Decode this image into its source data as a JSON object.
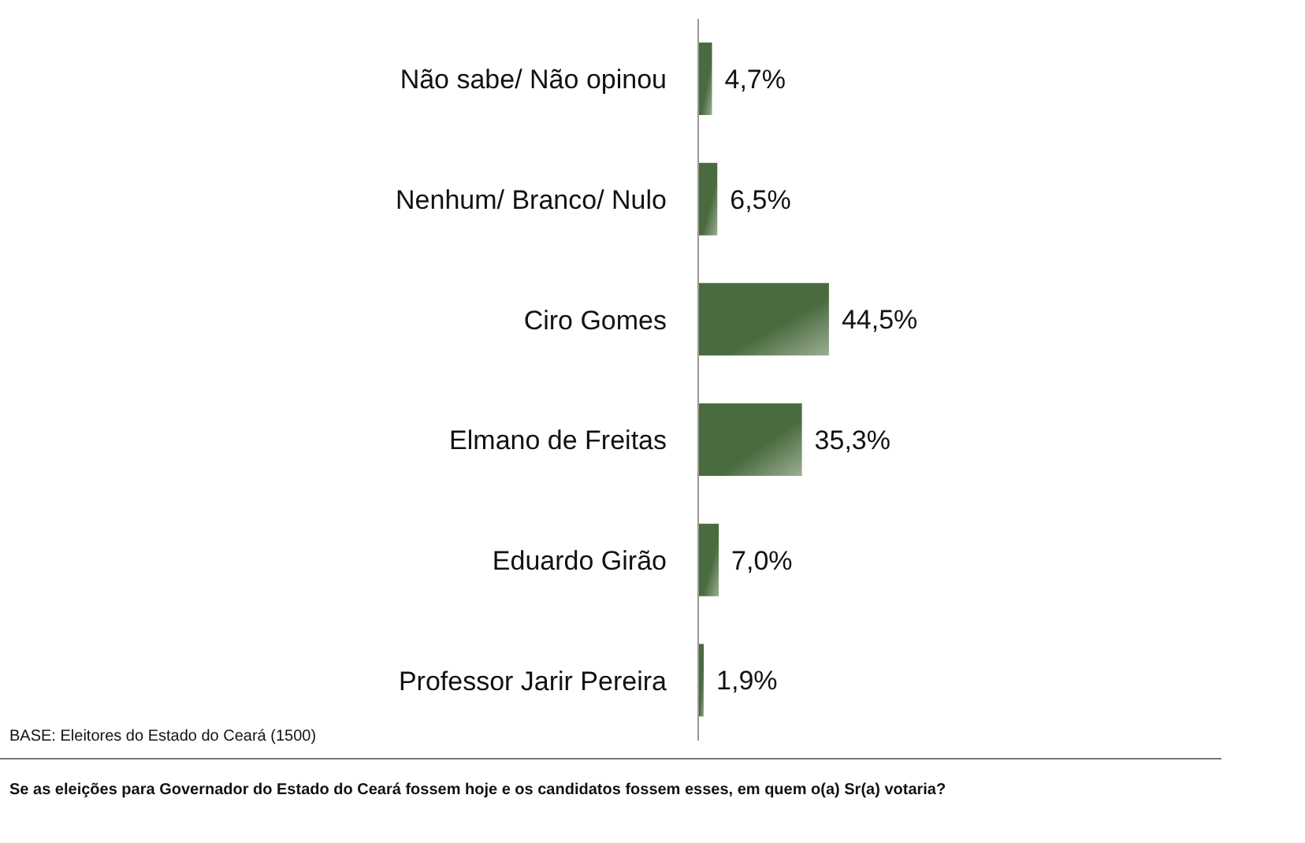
{
  "chart_data": {
    "type": "bar",
    "orientation": "horizontal",
    "categories": [
      "Não sabe/ Não opinou",
      "Nenhum/ Branco/ Nulo",
      "Ciro Gomes",
      "Elmano de Freitas",
      "Eduardo Girão",
      "Professor Jarir Pereira"
    ],
    "values": [
      4.7,
      6.5,
      44.5,
      35.3,
      7.0,
      1.9
    ],
    "value_labels": [
      "4,7%",
      "6,5%",
      "44,5%",
      "35,3%",
      "7,0%",
      "1,9%"
    ],
    "color": "#4a6b3e",
    "grid": false,
    "legend": false,
    "annotations": [
      "BASE: Eleitores do Estado do Ceará (1500)",
      "Se as eleições para Governador do Estado do Ceará fossem hoje e os candidatos fossem esses, em quem o(a) Sr(a) votaria?"
    ]
  }
}
